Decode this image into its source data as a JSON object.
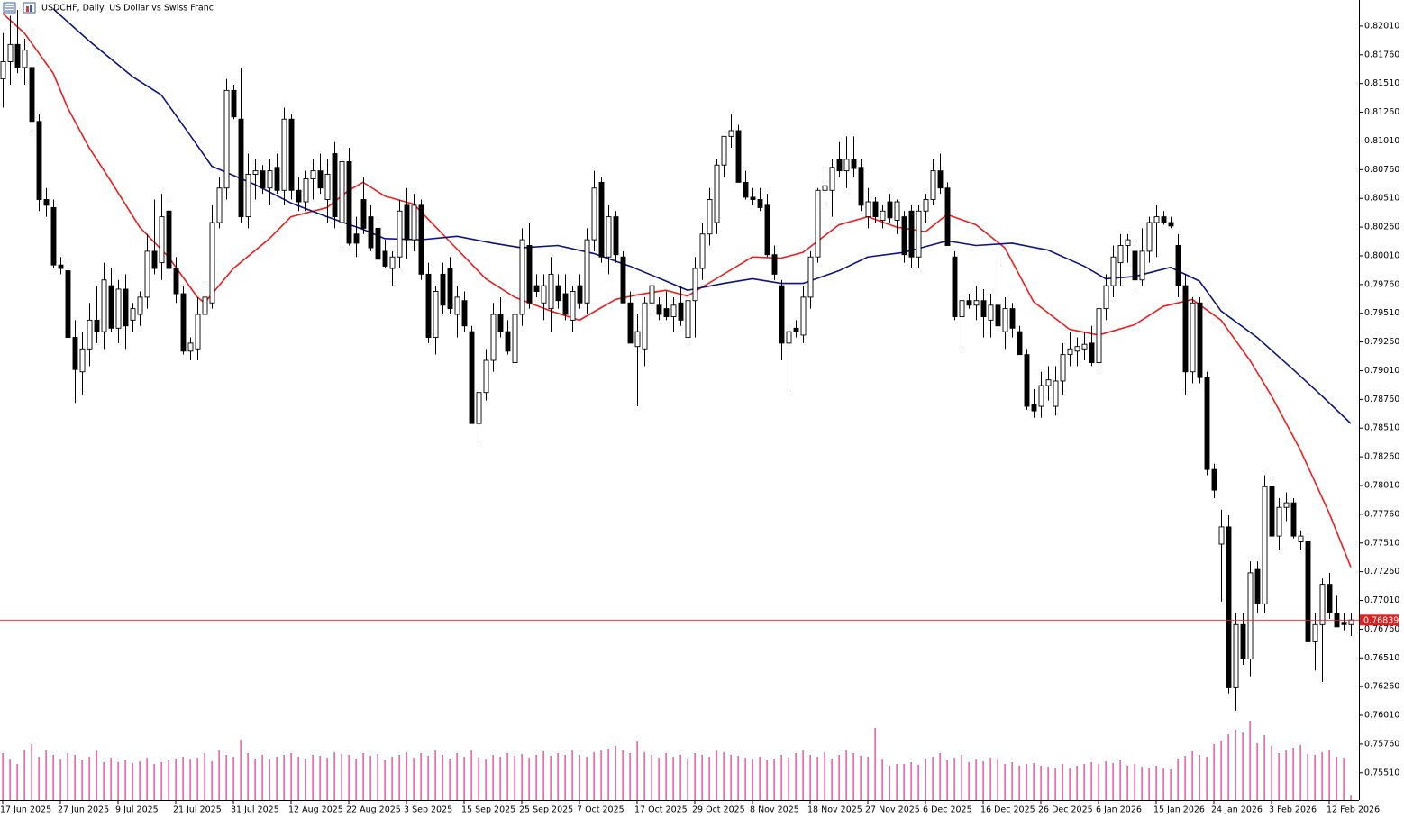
{
  "chart_data": {
    "type": "candlestick",
    "title": "USDCHF, Daily: US Dollar vs Swiss Franc",
    "categories": [
      "17 Jun 2025",
      null,
      null,
      null,
      null,
      null,
      null,
      null,
      "27 Jun 2025",
      null,
      null,
      null,
      null,
      null,
      null,
      null,
      "9 Jul 2025",
      null,
      null,
      null,
      null,
      null,
      null,
      null,
      "21 Jul 2025",
      null,
      null,
      null,
      null,
      null,
      null,
      null,
      "31 Jul 2025",
      null,
      null,
      null,
      null,
      null,
      null,
      null,
      "12 Aug 2025",
      null,
      null,
      null,
      null,
      null,
      null,
      null,
      "22 Aug 2025",
      null,
      null,
      null,
      null,
      null,
      null,
      null,
      "3 Sep 2025",
      null,
      null,
      null,
      null,
      null,
      null,
      null,
      "15 Sep 2025",
      null,
      null,
      null,
      null,
      null,
      null,
      null,
      "25 Sep 2025",
      null,
      null,
      null,
      null,
      null,
      null,
      null,
      "7 Oct 2025",
      null,
      null,
      null,
      null,
      null,
      null,
      null,
      "17 Oct 2025",
      null,
      null,
      null,
      null,
      null,
      null,
      null,
      "29 Oct 2025",
      null,
      null,
      null,
      null,
      null,
      null,
      null,
      "8 Nov 2025",
      null,
      null,
      null,
      null,
      null,
      null,
      null,
      "18 Nov 2025",
      null,
      null,
      null,
      null,
      null,
      null,
      null,
      "27 Nov 2025",
      null,
      null,
      null,
      null,
      null,
      null,
      null,
      "6 Dec 2025",
      null,
      null,
      null,
      null,
      null,
      null,
      null,
      "16 Dec 2025",
      null,
      null,
      null,
      null,
      null,
      null,
      null,
      "26 Dec 2025",
      null,
      null,
      null,
      null,
      null,
      null,
      null,
      "6 Jan 2026",
      null,
      null,
      null,
      null,
      null,
      null,
      null,
      "15 Jan 2026",
      null,
      null,
      null,
      null,
      null,
      null,
      null,
      "24 Jan 2026",
      null,
      null,
      null,
      null,
      null,
      null,
      null,
      "3 Feb 2026",
      null,
      null,
      null,
      null,
      null,
      null,
      null,
      "12 Feb 2026",
      null,
      null,
      null
    ],
    "open": [
      0.8155,
      0.817,
      0.8185,
      0.8165,
      0.8165,
      0.8118,
      0.805,
      0.8043,
      0.7993,
      0.7988,
      0.793,
      0.79,
      0.792,
      0.7945,
      0.7935,
      0.7975,
      0.7938,
      0.7972,
      0.7945,
      0.795,
      0.7965,
      0.8005,
      0.7995,
      0.804,
      0.799,
      0.7968,
      0.7918,
      0.792,
      0.795,
      0.796,
      0.803,
      0.806,
      0.8145,
      0.812,
      0.8035,
      0.8072,
      0.8075,
      0.806,
      0.8078,
      0.8058,
      0.812,
      0.8058,
      0.8048,
      0.8068,
      0.8075,
      0.805,
      0.809,
      0.803,
      0.8083,
      0.802,
      0.805,
      0.8035,
      0.8025,
      0.8005,
      0.799,
      0.8,
      0.8045,
      0.8015,
      0.8045,
      0.7985,
      0.793,
      0.7985,
      0.799,
      0.795,
      0.7962,
      0.7935,
      0.7855,
      0.7882,
      0.791,
      0.795,
      0.7935,
      0.7908,
      0.795,
      0.801,
      0.7975,
      0.796,
      0.7955,
      0.7975,
      0.7968,
      0.7945,
      0.7975,
      0.796,
      0.8015,
      0.8065,
      0.8,
      0.8035,
      0.8,
      0.796,
      0.7922,
      0.792,
      0.796,
      0.7958,
      0.7955,
      0.7948,
      0.796,
      0.793,
      0.7962,
      0.799,
      0.802,
      0.803,
      0.808,
      0.8105,
      0.811,
      0.8065,
      0.8052,
      0.805,
      0.8045,
      0.8002,
      0.7975,
      0.7925,
      0.7938,
      0.7932,
      0.7965,
      0.8,
      0.8058,
      0.8058,
      0.8085,
      0.8075,
      0.8085,
      0.8078,
      0.8035,
      0.8048,
      0.8032,
      0.8048,
      0.8032,
      0.8035,
      0.804,
      0.8,
      0.804,
      0.805,
      0.8075,
      0.806,
      0.8,
      0.7948,
      0.7962,
      0.7958,
      0.7962,
      0.7945,
      0.7958,
      0.7935,
      0.7955,
      0.7935,
      0.7915,
      0.7872,
      0.787,
      0.7888,
      0.787,
      0.7892,
      0.7915,
      0.7918,
      0.792,
      0.7925,
      0.7908,
      0.7955,
      0.7975,
      0.7995,
      0.801,
      0.8005,
      0.798,
      0.8005,
      0.803,
      0.8035,
      0.803,
      0.801,
      0.7975,
      0.79,
      0.796,
      0.7895,
      0.7815,
      0.775,
      0.7765,
      0.7625,
      0.768,
      0.765,
      0.7728,
      0.7698,
      0.78,
      0.7757,
      0.7782,
      0.7786,
      0.7752,
      0.7752,
      0.7665,
      0.768,
      0.7715,
      0.769,
      0.7682,
      0.768
    ],
    "high": [
      0.8195,
      0.821,
      0.8215,
      0.819,
      0.8195,
      0.8125,
      0.806,
      0.805,
      0.8,
      0.7995,
      0.7945,
      0.7935,
      0.796,
      0.7975,
      0.7995,
      0.799,
      0.798,
      0.7985,
      0.796,
      0.797,
      0.802,
      0.805,
      0.8055,
      0.805,
      0.8,
      0.7975,
      0.793,
      0.7965,
      0.7975,
      0.8045,
      0.807,
      0.8155,
      0.815,
      0.8165,
      0.809,
      0.8085,
      0.808,
      0.8085,
      0.809,
      0.813,
      0.8125,
      0.807,
      0.8075,
      0.8085,
      0.809,
      0.8085,
      0.81,
      0.8095,
      0.8095,
      0.8035,
      0.807,
      0.8045,
      0.8035,
      0.8015,
      0.8005,
      0.805,
      0.806,
      0.8055,
      0.805,
      0.7995,
      0.7975,
      0.7995,
      0.8,
      0.7975,
      0.797,
      0.794,
      0.7885,
      0.792,
      0.796,
      0.7965,
      0.7945,
      0.796,
      0.8025,
      0.803,
      0.7985,
      0.7985,
      0.8,
      0.7985,
      0.7985,
      0.7975,
      0.7985,
      0.8025,
      0.8075,
      0.807,
      0.8045,
      0.804,
      0.8005,
      0.797,
      0.795,
      0.7965,
      0.798,
      0.7965,
      0.797,
      0.7965,
      0.7975,
      0.7965,
      0.8,
      0.803,
      0.806,
      0.8085,
      0.8105,
      0.8125,
      0.8115,
      0.8075,
      0.806,
      0.806,
      0.8055,
      0.801,
      0.798,
      0.794,
      0.7945,
      0.7975,
      0.8005,
      0.806,
      0.8075,
      0.8085,
      0.81,
      0.8105,
      0.8105,
      0.8085,
      0.806,
      0.8052,
      0.8045,
      0.8055,
      0.805,
      0.804,
      0.8045,
      0.8045,
      0.8055,
      0.8085,
      0.809,
      0.8065,
      0.8005,
      0.7965,
      0.7968,
      0.7975,
      0.7972,
      0.7968,
      0.7995,
      0.7965,
      0.796,
      0.794,
      0.792,
      0.7885,
      0.79,
      0.7905,
      0.7905,
      0.7925,
      0.7935,
      0.793,
      0.7935,
      0.794,
      0.7955,
      0.7985,
      0.801,
      0.802,
      0.802,
      0.8015,
      0.8025,
      0.8035,
      0.8045,
      0.804,
      0.8035,
      0.802,
      0.7985,
      0.7965,
      0.7965,
      0.79,
      0.782,
      0.778,
      0.7775,
      0.769,
      0.769,
      0.7735,
      0.7735,
      0.781,
      0.7805,
      0.779,
      0.7795,
      0.779,
      0.7762,
      0.7755,
      0.769,
      0.772,
      0.7725,
      0.7705,
      0.769,
      0.769
    ],
    "low": [
      0.813,
      0.815,
      0.816,
      0.815,
      0.811,
      0.804,
      0.8035,
      0.799,
      0.7985,
      0.793,
      0.7873,
      0.788,
      0.7905,
      0.7925,
      0.792,
      0.7935,
      0.7925,
      0.792,
      0.7935,
      0.794,
      0.7955,
      0.7985,
      0.798,
      0.7985,
      0.796,
      0.7915,
      0.791,
      0.791,
      0.7935,
      0.7955,
      0.8025,
      0.805,
      0.812,
      0.803,
      0.8025,
      0.805,
      0.8055,
      0.8045,
      0.8055,
      0.8045,
      0.805,
      0.804,
      0.804,
      0.805,
      0.8055,
      0.803,
      0.8025,
      0.801,
      0.801,
      0.8,
      0.802,
      0.8005,
      0.7995,
      0.799,
      0.7975,
      0.799,
      0.7998,
      0.8005,
      0.798,
      0.7925,
      0.7915,
      0.795,
      0.795,
      0.793,
      0.7935,
      0.7855,
      0.7835,
      0.7875,
      0.79,
      0.793,
      0.7915,
      0.7905,
      0.794,
      0.7955,
      0.7965,
      0.7945,
      0.7935,
      0.7955,
      0.7945,
      0.7935,
      0.7955,
      0.795,
      0.8005,
      0.7995,
      0.7985,
      0.7995,
      0.796,
      0.7925,
      0.787,
      0.7905,
      0.795,
      0.7945,
      0.7945,
      0.7935,
      0.794,
      0.7925,
      0.793,
      0.798,
      0.801,
      0.802,
      0.807,
      0.8095,
      0.8065,
      0.805,
      0.8045,
      0.804,
      0.8,
      0.798,
      0.791,
      0.788,
      0.793,
      0.7925,
      0.7955,
      0.7995,
      0.8045,
      0.8035,
      0.807,
      0.806,
      0.807,
      0.804,
      0.8025,
      0.803,
      0.8025,
      0.803,
      0.802,
      0.7995,
      0.799,
      0.799,
      0.803,
      0.8045,
      0.8055,
      0.801,
      0.7945,
      0.792,
      0.7955,
      0.7945,
      0.793,
      0.793,
      0.7935,
      0.792,
      0.793,
      0.7915,
      0.7867,
      0.786,
      0.786,
      0.7875,
      0.7862,
      0.788,
      0.7905,
      0.7905,
      0.791,
      0.7905,
      0.7902,
      0.7945,
      0.7965,
      0.7975,
      0.7995,
      0.797,
      0.7975,
      0.7995,
      0.8,
      0.8028,
      0.8025,
      0.7965,
      0.788,
      0.789,
      0.789,
      0.781,
      0.779,
      0.77,
      0.762,
      0.7605,
      0.7645,
      0.7635,
      0.769,
      0.769,
      0.7755,
      0.7745,
      0.777,
      0.7755,
      0.7745,
      0.7665,
      0.764,
      0.763,
      0.7685,
      0.768,
      0.7675,
      0.767
    ],
    "close": [
      0.817,
      0.8185,
      0.8165,
      0.818,
      0.8118,
      0.805,
      0.8045,
      0.7993,
      0.799,
      0.793,
      0.7902,
      0.792,
      0.7945,
      0.7935,
      0.798,
      0.7938,
      0.7972,
      0.794,
      0.7955,
      0.7965,
      0.8005,
      0.799,
      0.8035,
      0.799,
      0.7968,
      0.7918,
      0.7925,
      0.795,
      0.7965,
      0.803,
      0.806,
      0.8145,
      0.8122,
      0.8035,
      0.8072,
      0.8075,
      0.806,
      0.8075,
      0.8058,
      0.812,
      0.8058,
      0.8048,
      0.8068,
      0.8075,
      0.806,
      0.8072,
      0.8035,
      0.8083,
      0.8012,
      0.8012,
      0.8025,
      0.8008,
      0.7998,
      0.7992,
      0.8,
      0.804,
      0.8015,
      0.8045,
      0.7985,
      0.793,
      0.797,
      0.7958,
      0.7955,
      0.7965,
      0.794,
      0.7855,
      0.7882,
      0.791,
      0.795,
      0.7935,
      0.7918,
      0.795,
      0.8015,
      0.796,
      0.797,
      0.7975,
      0.7985,
      0.7962,
      0.795,
      0.797,
      0.796,
      0.8015,
      0.806,
      0.8,
      0.8035,
      0.8002,
      0.796,
      0.7925,
      0.7935,
      0.796,
      0.7975,
      0.795,
      0.7948,
      0.7958,
      0.7945,
      0.7962,
      0.799,
      0.802,
      0.805,
      0.808,
      0.8105,
      0.811,
      0.8065,
      0.8052,
      0.805,
      0.8043,
      0.8002,
      0.7985,
      0.7925,
      0.7935,
      0.7935,
      0.7965,
      0.8,
      0.8058,
      0.8062,
      0.8078,
      0.8075,
      0.8085,
      0.8077,
      0.8045,
      0.8048,
      0.8035,
      0.804,
      0.8034,
      0.8048,
      0.8002,
      0.8,
      0.804,
      0.805,
      0.8075,
      0.806,
      0.801,
      0.7948,
      0.7962,
      0.7958,
      0.7962,
      0.7948,
      0.7958,
      0.794,
      0.7955,
      0.7938,
      0.7915,
      0.787,
      0.7866,
      0.7888,
      0.7893,
      0.7892,
      0.7915,
      0.792,
      0.7922,
      0.7924,
      0.7908,
      0.7955,
      0.7975,
      0.8,
      0.801,
      0.8015,
      0.798,
      0.8005,
      0.803,
      0.8035,
      0.803,
      0.8027,
      0.7975,
      0.79,
      0.796,
      0.7895,
      0.7815,
      0.7797,
      0.7765,
      0.7625,
      0.768,
      0.765,
      0.7725,
      0.7698,
      0.78,
      0.7757,
      0.7782,
      0.7786,
      0.7757,
      0.7757,
      0.7665,
      0.768,
      0.7715,
      0.769,
      0.7678,
      0.768,
      0.7684
    ],
    "volume": [
      52,
      45,
      40,
      56,
      62,
      48,
      55,
      50,
      45,
      52,
      50,
      44,
      48,
      55,
      42,
      47,
      42,
      44,
      41,
      43,
      47,
      40,
      42,
      44,
      46,
      48,
      45,
      47,
      52,
      43,
      55,
      50,
      48,
      67,
      52,
      46,
      50,
      45,
      48,
      50,
      52,
      48,
      46,
      50,
      49,
      47,
      53,
      51,
      50,
      46,
      52,
      49,
      51,
      44,
      48,
      50,
      53,
      47,
      52,
      49,
      55,
      50,
      46,
      52,
      48,
      55,
      47,
      45,
      50,
      48,
      52,
      49,
      51,
      47,
      50,
      54,
      49,
      52,
      50,
      55,
      50,
      48,
      53,
      55,
      57,
      60,
      55,
      52,
      65,
      53,
      50,
      47,
      52,
      48,
      50,
      46,
      52,
      50,
      48,
      55,
      53,
      50,
      49,
      47,
      45,
      48,
      44,
      46,
      50,
      47,
      52,
      55,
      50,
      48,
      53,
      46,
      50,
      55,
      52,
      49,
      48,
      80,
      45,
      38,
      40,
      40,
      42,
      39,
      46,
      48,
      52,
      44,
      47,
      50,
      42,
      45,
      43,
      47,
      45,
      40,
      42,
      38,
      40,
      41,
      38,
      37,
      36,
      40,
      35,
      38,
      40,
      42,
      40,
      43,
      41,
      44,
      38,
      40,
      37,
      36,
      38,
      35,
      34,
      46,
      49,
      54,
      50,
      48,
      62,
      66,
      73,
      78,
      75,
      88,
      63,
      72,
      60,
      52,
      55,
      58,
      61,
      51,
      50,
      53,
      56,
      48,
      47,
      5
    ],
    "up_color": "#ffffff",
    "down_color": "#000000",
    "volume_color": "#e0308a",
    "lines": [
      {
        "color": "#ee1c1c",
        "x": [
          0,
          3,
          7,
          9,
          12,
          15,
          19,
          23,
          27,
          28,
          32,
          37,
          40,
          45,
          48,
          50,
          53,
          57,
          61,
          67,
          71,
          76,
          80,
          85,
          88,
          92,
          95,
          100,
          104,
          108,
          111,
          116,
          120,
          124,
          128,
          131,
          135,
          139,
          143,
          148,
          152,
          157,
          161,
          165,
          169,
          173,
          176,
          180,
          184,
          187
        ],
        "values": [
          0.8212,
          0.8195,
          0.816,
          0.813,
          0.8095,
          0.8066,
          0.8026,
          0.8,
          0.7965,
          0.796,
          0.799,
          0.8016,
          0.8035,
          0.8043,
          0.8058,
          0.8065,
          0.8053,
          0.8046,
          0.802,
          0.7981,
          0.7965,
          0.7953,
          0.7945,
          0.7963,
          0.7967,
          0.7971,
          0.7966,
          0.7985,
          0.8,
          0.7999,
          0.8004,
          0.8028,
          0.8035,
          0.8026,
          0.8022,
          0.8037,
          0.8028,
          0.8008,
          0.7961,
          0.7937,
          0.7932,
          0.7941,
          0.7957,
          0.7963,
          0.7945,
          0.791,
          0.7879,
          0.7832,
          0.7777,
          0.773
        ]
      },
      {
        "color": "#0c1383",
        "x": [
          7,
          12,
          18,
          22,
          26,
          29,
          35,
          40,
          45,
          50,
          53,
          58,
          63,
          68,
          72,
          77,
          82,
          87,
          92,
          95,
          100,
          104,
          108,
          111,
          116,
          120,
          125,
          131,
          135,
          140,
          145,
          150,
          153,
          157,
          162,
          166,
          169,
          174,
          179,
          183,
          187
        ],
        "values": [
          0.8216,
          0.8188,
          0.8157,
          0.8141,
          0.8106,
          0.8079,
          0.8063,
          0.8047,
          0.8035,
          0.8024,
          0.8016,
          0.8015,
          0.8018,
          0.8012,
          0.8008,
          0.801,
          0.8003,
          0.7992,
          0.7979,
          0.7971,
          0.7977,
          0.7981,
          0.7977,
          0.7977,
          0.7988,
          0.8,
          0.8004,
          0.8014,
          0.801,
          0.8012,
          0.8006,
          0.7992,
          0.7981,
          0.7983,
          0.7991,
          0.7979,
          0.7953,
          0.793,
          0.7902,
          0.7879,
          0.7855
        ]
      }
    ],
    "last_price": 0.76839,
    "last_price_color": "#e02020",
    "ylim": [
      0.75273,
      0.82237
    ],
    "yticks": [
      {
        "value": 0.8201,
        "label": "0.82010"
      },
      {
        "value": 0.8176,
        "label": "0.81760"
      },
      {
        "value": 0.8151,
        "label": "0.81510"
      },
      {
        "value": 0.8126,
        "label": "0.81260"
      },
      {
        "value": 0.8101,
        "label": "0.81010"
      },
      {
        "value": 0.8076,
        "label": "0.80760"
      },
      {
        "value": 0.8051,
        "label": "0.80510"
      },
      {
        "value": 0.8026,
        "label": "0.80260"
      },
      {
        "value": 0.8001,
        "label": "0.80010"
      },
      {
        "value": 0.7976,
        "label": "0.79760"
      },
      {
        "value": 0.7951,
        "label": "0.79510"
      },
      {
        "value": 0.7926,
        "label": "0.79260"
      },
      {
        "value": 0.7901,
        "label": "0.79010"
      },
      {
        "value": 0.7876,
        "label": "0.78760"
      },
      {
        "value": 0.7851,
        "label": "0.78510"
      },
      {
        "value": 0.7826,
        "label": "0.78260"
      },
      {
        "value": 0.7801,
        "label": "0.78010"
      },
      {
        "value": 0.7776,
        "label": "0.77760"
      },
      {
        "value": 0.7751,
        "label": "0.77510"
      },
      {
        "value": 0.7726,
        "label": "0.77260"
      },
      {
        "value": 0.7701,
        "label": "0.77010"
      },
      {
        "value": 0.7676,
        "label": "0.76760"
      },
      {
        "value": 0.7651,
        "label": "0.76510"
      },
      {
        "value": 0.7626,
        "label": "0.76260"
      },
      {
        "value": 0.7601,
        "label": "0.76010"
      },
      {
        "value": 0.7576,
        "label": "0.75760"
      },
      {
        "value": 0.7551,
        "label": "0.75510"
      }
    ]
  }
}
